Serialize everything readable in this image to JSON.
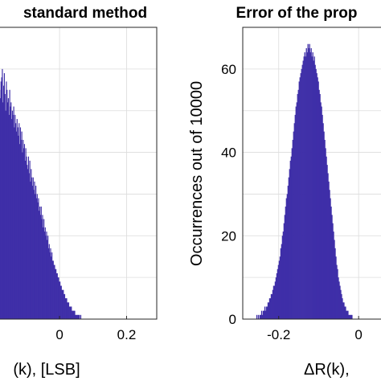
{
  "chart_data": [
    {
      "type": "bar",
      "title": "standard method",
      "xlabel": "(k), [LSB]",
      "ylabel": "",
      "xlim": [
        -0.18,
        0.29
      ],
      "ylim": [
        0,
        70
      ],
      "xticks": [
        0,
        0.2
      ],
      "xtick_labels": [
        "0",
        "0.2"
      ],
      "grid": true,
      "bar_color": "#3f2fa8",
      "bin_width": 0.002,
      "bins": {
        "start": -0.18,
        "values": [
          55,
          53,
          57,
          58,
          60,
          52,
          56,
          59,
          54,
          50,
          57,
          55,
          52,
          53,
          49,
          55,
          51,
          52,
          48,
          50,
          49,
          51,
          46,
          49,
          47,
          45,
          48,
          46,
          44,
          47,
          42,
          46,
          43,
          45,
          40,
          43,
          41,
          42,
          38,
          41,
          39,
          37,
          36,
          39,
          35,
          38,
          33,
          36,
          34,
          32,
          34,
          31,
          33,
          30,
          32,
          29,
          30,
          28,
          29,
          26,
          27,
          25,
          27,
          24,
          25,
          22,
          24,
          21,
          22,
          20,
          21,
          19,
          20,
          17,
          18,
          16,
          17,
          15,
          16,
          14,
          14,
          13,
          13,
          12,
          12,
          11,
          11,
          10,
          10,
          9,
          9,
          8,
          8,
          7,
          7,
          7,
          6,
          6,
          5,
          5,
          5,
          4,
          4,
          4,
          3,
          3,
          3,
          3,
          2,
          2,
          2,
          2,
          2,
          1,
          1,
          1,
          1,
          1,
          1,
          1,
          0,
          1,
          0,
          0,
          0,
          0,
          0,
          0,
          0,
          0,
          0,
          0,
          0,
          0,
          0,
          0,
          0,
          0,
          0,
          0,
          0,
          0,
          0,
          0,
          0,
          0,
          0,
          0,
          0,
          0,
          0,
          0,
          0,
          0,
          0,
          0,
          0,
          0,
          0,
          0,
          0,
          0,
          0,
          0,
          0,
          0,
          0,
          0,
          0,
          0,
          0,
          0,
          0,
          0,
          0,
          0,
          0,
          0,
          0,
          0,
          0,
          0,
          0,
          0,
          0,
          0,
          0,
          0,
          0,
          0,
          0,
          0,
          0,
          0,
          0,
          0,
          0,
          0,
          0,
          0,
          0,
          0,
          0,
          0,
          0,
          0,
          0,
          0,
          0,
          0,
          0,
          0,
          0,
          0,
          0,
          0,
          0,
          0,
          0,
          0,
          0,
          0,
          0,
          0,
          0,
          0,
          0,
          0,
          0,
          0,
          0,
          0,
          0,
          0,
          0,
          0
        ]
      }
    },
    {
      "type": "bar",
      "title": "Error of the prop",
      "xlabel": "ΔR(k),",
      "ylabel": "Occurrences out of 10000",
      "xlim": [
        -0.29,
        0.06
      ],
      "ylim": [
        0,
        70
      ],
      "xticks": [
        -0.2,
        0
      ],
      "xtick_labels": [
        "-0.2",
        "0"
      ],
      "yticks": [
        0,
        20,
        40,
        60
      ],
      "ytick_labels": [
        "0",
        "20",
        "40",
        "60"
      ],
      "grid": true,
      "bar_color": "#3f2fa8",
      "bin_width": 0.002,
      "bins": {
        "start": -0.29,
        "values": [
          0,
          0,
          0,
          0,
          0,
          0,
          0,
          0,
          0,
          0,
          0,
          0,
          0,
          0,
          0,
          0,
          0,
          1,
          0,
          1,
          0,
          1,
          1,
          2,
          1,
          2,
          2,
          3,
          2,
          3,
          3,
          4,
          4,
          5,
          5,
          6,
          6,
          7,
          8,
          8,
          9,
          10,
          11,
          12,
          13,
          14,
          15,
          17,
          18,
          20,
          21,
          23,
          25,
          27,
          29,
          30,
          32,
          34,
          36,
          38,
          39,
          41,
          43,
          45,
          47,
          49,
          51,
          52,
          54,
          55,
          57,
          58,
          59,
          60,
          61,
          62,
          63,
          64,
          63,
          65,
          64,
          66,
          65,
          66,
          64,
          65,
          63,
          64,
          62,
          63,
          61,
          60,
          59,
          58,
          57,
          55,
          54,
          52,
          51,
          49,
          47,
          45,
          43,
          41,
          39,
          37,
          35,
          33,
          31,
          29,
          27,
          25,
          23,
          21,
          19,
          17,
          15,
          13,
          12,
          10,
          9,
          8,
          7,
          6,
          5,
          4,
          4,
          3,
          3,
          2,
          2,
          2,
          1,
          1,
          1,
          1,
          1,
          0,
          0,
          0,
          0,
          0,
          0,
          0,
          0,
          0,
          0,
          0,
          0,
          0,
          0,
          0,
          0,
          0,
          0,
          0,
          0,
          0,
          0,
          0,
          0,
          0,
          0,
          0,
          0,
          0,
          0,
          0,
          0,
          0,
          0,
          0,
          0,
          0
        ]
      }
    }
  ]
}
